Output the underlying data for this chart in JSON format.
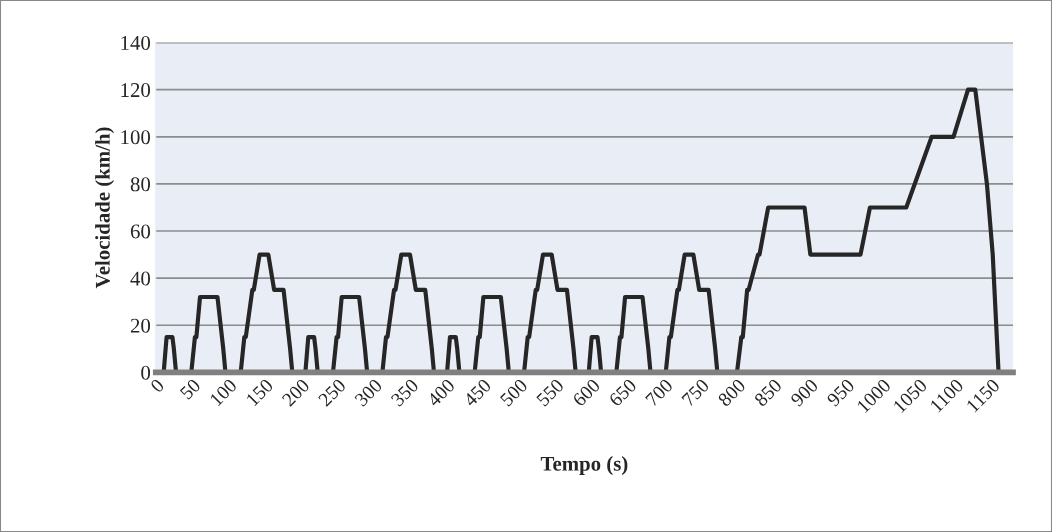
{
  "chart_data": {
    "type": "line",
    "xlabel": "Tempo (s)",
    "ylabel": "Velocidade (km/h)",
    "series": [
      {
        "color": "#262626",
        "line_style": "solid",
        "marker": "none",
        "x": [
          0,
          11,
          15,
          23,
          25,
          28,
          49,
          54,
          56,
          61,
          85,
          93,
          96,
          117,
          122,
          124,
          133,
          135,
          143,
          155,
          163,
          176,
          185,
          188,
          195,
          206,
          210,
          218,
          220,
          223,
          244,
          249,
          251,
          256,
          280,
          288,
          291,
          312,
          317,
          319,
          328,
          330,
          338,
          350,
          358,
          371,
          380,
          383,
          390,
          401,
          405,
          413,
          415,
          418,
          439,
          444,
          446,
          451,
          475,
          483,
          486,
          507,
          512,
          514,
          523,
          525,
          533,
          545,
          553,
          566,
          575,
          578,
          585,
          596,
          600,
          608,
          610,
          613,
          634,
          639,
          641,
          646,
          670,
          678,
          681,
          702,
          707,
          709,
          718,
          720,
          728,
          740,
          748,
          761,
          770,
          773,
          780,
          800,
          806,
          808,
          814,
          816,
          829,
          831,
          843,
          893,
          901,
          970,
          983,
          1033,
          1068,
          1098,
          1118,
          1128,
          1144,
          1152,
          1160,
          1180
        ],
        "values": [
          0,
          0,
          15,
          15,
          10,
          0,
          0,
          15,
          15,
          32,
          32,
          10,
          0,
          0,
          15,
          15,
          35,
          35,
          50,
          50,
          35,
          35,
          10,
          0,
          0,
          0,
          15,
          15,
          10,
          0,
          0,
          15,
          15,
          32,
          32,
          10,
          0,
          0,
          15,
          15,
          35,
          35,
          50,
          50,
          35,
          35,
          10,
          0,
          0,
          0,
          15,
          15,
          10,
          0,
          0,
          15,
          15,
          32,
          32,
          10,
          0,
          0,
          15,
          15,
          35,
          35,
          50,
          50,
          35,
          35,
          10,
          0,
          0,
          0,
          15,
          15,
          10,
          0,
          0,
          15,
          15,
          32,
          32,
          10,
          0,
          0,
          15,
          15,
          35,
          35,
          50,
          50,
          35,
          35,
          10,
          0,
          0,
          0,
          15,
          15,
          35,
          35,
          50,
          50,
          70,
          70,
          50,
          50,
          70,
          70,
          100,
          100,
          120,
          120,
          80,
          50,
          0,
          0
        ]
      }
    ],
    "xlim": [
      0,
      1180
    ],
    "xticks": [
      0,
      50,
      100,
      150,
      200,
      250,
      300,
      350,
      400,
      450,
      500,
      550,
      600,
      650,
      700,
      750,
      800,
      850,
      900,
      950,
      1000,
      1050,
      1100,
      1150
    ],
    "ylim": [
      0,
      140
    ],
    "yticks": [
      0,
      20,
      40,
      60,
      80,
      100,
      120,
      140
    ],
    "grid": "y",
    "legend": false
  }
}
